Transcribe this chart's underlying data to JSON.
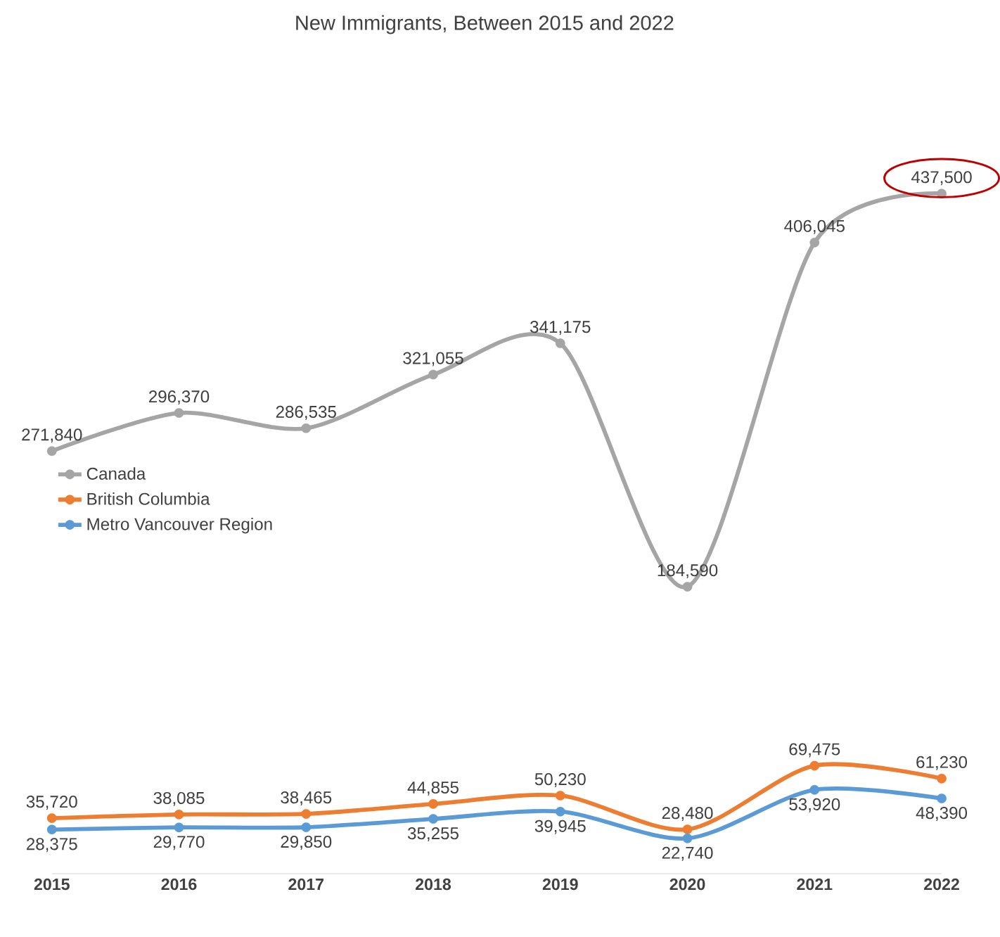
{
  "chart_data": {
    "type": "line",
    "title": "New Immigrants, Between 2015 and 2022",
    "categories": [
      "2015",
      "2016",
      "2017",
      "2018",
      "2019",
      "2020",
      "2021",
      "2022"
    ],
    "series": [
      {
        "name": "Canada",
        "color": "#a5a5a5",
        "values": [
          271840,
          296370,
          286535,
          321055,
          341175,
          184590,
          406045,
          437500
        ],
        "value_labels": [
          "271,840",
          "296,370",
          "286,535",
          "321,055",
          "341,175",
          "184,590",
          "406,045",
          "437,500"
        ]
      },
      {
        "name": "British Columbia",
        "color": "#ed7d31",
        "values": [
          35720,
          38085,
          38465,
          44855,
          50230,
          28480,
          69475,
          61230
        ],
        "value_labels": [
          "35,720",
          "38,085",
          "38,465",
          "44,855",
          "50,230",
          "28,480",
          "69,475",
          "61,230"
        ]
      },
      {
        "name": "Metro Vancouver Region",
        "color": "#5b9bd5",
        "values": [
          28375,
          29770,
          29850,
          35255,
          39945,
          22740,
          53920,
          48390
        ],
        "value_labels": [
          "28,375",
          "29,770",
          "29,850",
          "35,255",
          "39,945",
          "22,740",
          "53,920",
          "48,390"
        ]
      }
    ],
    "marker": "circle",
    "legend": "left",
    "grid": false
  }
}
